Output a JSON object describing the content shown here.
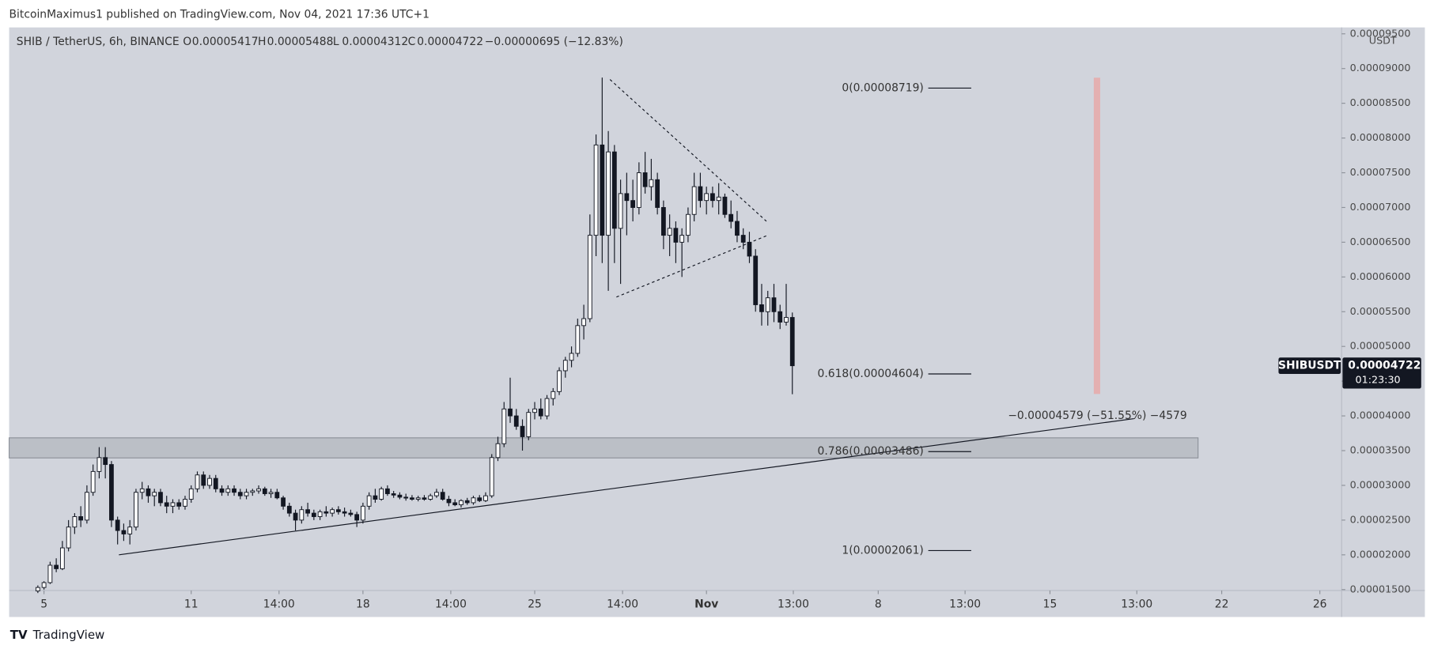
{
  "publisher": "BitcoinMaximus1 published on TradingView.com, Nov 04, 2021 17:36 UTC+1",
  "brand": "TradingView",
  "chart_data": {
    "type": "candlestick",
    "title": "SHIB / TetherUS, 6h, BINANCE",
    "legend_keys": [
      "O",
      "H",
      "L",
      "C"
    ],
    "change": "−0.00000695 (−12.83%)",
    "symbol": "SHIBUSDT",
    "countdown": "01:23:30",
    "currency": "USDT",
    "measure": "−0.00004579 (−51.55%) −4579",
    "fib_levels": [
      {
        "label": "0(0.00008719)",
        "value": 8.719e-05
      },
      {
        "label": "0.618(0.00004604)",
        "value": 4.604e-05
      },
      {
        "label": "0.786(0.00003486)",
        "value": 3.486e-05
      },
      {
        "label": "1(0.00002061)",
        "value": 2.061e-05
      }
    ],
    "xlim": [
      3.58,
      57.85
    ],
    "xticks": [
      5,
      11,
      {
        "value": 14.58,
        "label": "14:00"
      },
      18,
      {
        "value": 21.58,
        "label": "14:00"
      },
      25,
      {
        "value": 28.58,
        "label": "14:00"
      },
      {
        "value": 32,
        "label": "Nov"
      },
      {
        "value": 35.54,
        "label": "13:00"
      },
      {
        "value": 39,
        "label": "8"
      },
      {
        "value": 42.54,
        "label": "13:00"
      },
      {
        "value": 46,
        "label": "15"
      },
      {
        "value": 49.54,
        "label": "13:00"
      },
      {
        "value": 53,
        "label": "22"
      },
      {
        "value": 57,
        "label": "26"
      }
    ],
    "ylim": [
      1.5e-05,
      9.592e-05
    ],
    "yticks": [
      {
        "value": 1.5e-05,
        "label": "0.00001500"
      },
      {
        "value": 2e-05,
        "label": "0.00002000"
      },
      {
        "value": 2.5e-05,
        "label": "0.00002500"
      },
      {
        "value": 3e-05,
        "label": "0.00003000"
      },
      {
        "value": 3.5e-05,
        "label": "0.00003500"
      },
      {
        "value": 4e-05,
        "label": "0.00004000"
      },
      {
        "value": 4.5e-05,
        "label": "0.00004500"
      },
      {
        "value": 5e-05,
        "label": "0.00005000"
      },
      {
        "value": 5.5e-05,
        "label": "0.00005500"
      },
      {
        "value": 6e-05,
        "label": "0.00006000"
      },
      {
        "value": 6.5e-05,
        "label": "0.00006500"
      },
      {
        "value": 7e-05,
        "label": "0.00007000"
      },
      {
        "value": 7.5e-05,
        "label": "0.00007500"
      },
      {
        "value": 8e-05,
        "label": "0.00008000"
      },
      {
        "value": 8.5e-05,
        "label": "0.00008500"
      },
      {
        "value": 9e-05,
        "label": "0.00009000"
      },
      {
        "value": 9.5e-05,
        "label": "0.00009500"
      }
    ],
    "up_color": "#ffffff",
    "down_color": "#131722",
    "x": [
      4.75,
      5,
      5.25,
      5.5,
      5.75,
      6,
      6.25,
      6.5,
      6.75,
      7,
      7.25,
      7.5,
      7.75,
      8,
      8.25,
      8.5,
      8.75,
      9,
      9.25,
      9.5,
      9.75,
      10,
      10.25,
      10.5,
      10.75,
      11,
      11.25,
      11.5,
      11.75,
      12,
      12.25,
      12.5,
      12.75,
      13,
      13.25,
      13.5,
      13.75,
      14,
      14.25,
      14.5,
      14.75,
      15,
      15.25,
      15.5,
      15.75,
      16,
      16.25,
      16.5,
      16.75,
      17,
      17.25,
      17.5,
      17.75,
      18,
      18.25,
      18.5,
      18.75,
      19,
      19.25,
      19.5,
      19.75,
      20,
      20.25,
      20.5,
      20.75,
      21,
      21.25,
      21.5,
      21.75,
      22,
      22.25,
      22.5,
      22.75,
      23,
      23.25,
      23.5,
      23.75,
      24,
      24.25,
      24.5,
      24.75,
      25,
      25.25,
      25.5,
      25.75,
      26,
      26.25,
      26.5,
      26.75,
      27,
      27.25,
      27.5,
      27.75,
      28,
      28.25,
      28.5,
      28.75,
      29,
      29.25,
      29.5,
      29.75,
      30,
      30.25,
      30.5,
      30.75,
      31,
      31.25,
      31.5,
      31.75,
      32,
      32.25,
      32.5,
      32.75,
      33,
      33.25,
      33.5,
      33.75,
      34,
      34.25,
      34.5,
      34.75,
      35,
      35.25,
      35.5
    ],
    "candles": [
      [
        1.48e-05,
        1.56e-05,
        1.45e-05,
        1.53e-05
      ],
      [
        1.53e-05,
        1.62e-05,
        1.5e-05,
        1.6e-05
      ],
      [
        1.6e-05,
        1.9e-05,
        1.58e-05,
        1.85e-05
      ],
      [
        1.85e-05,
        1.95e-05,
        1.75e-05,
        1.8e-05
      ],
      [
        1.8e-05,
        2.2e-05,
        1.78e-05,
        2.1e-05
      ],
      [
        2.1e-05,
        2.5e-05,
        2.05e-05,
        2.4e-05
      ],
      [
        2.4e-05,
        2.6e-05,
        2.3e-05,
        2.55e-05
      ],
      [
        2.55e-05,
        2.7e-05,
        2.4e-05,
        2.5e-05
      ],
      [
        2.5e-05,
        3e-05,
        2.45e-05,
        2.9e-05
      ],
      [
        2.9e-05,
        3.3e-05,
        2.85e-05,
        3.2e-05
      ],
      [
        3.2e-05,
        3.55e-05,
        3.1e-05,
        3.4e-05
      ],
      [
        3.4e-05,
        3.55e-05,
        3.1e-05,
        3.3e-05
      ],
      [
        3.3e-05,
        3.35e-05,
        2.4e-05,
        2.5e-05
      ],
      [
        2.5e-05,
        2.55e-05,
        2.15e-05,
        2.35e-05
      ],
      [
        2.35e-05,
        2.45e-05,
        2.2e-05,
        2.3e-05
      ],
      [
        2.3e-05,
        2.5e-05,
        2.15e-05,
        2.4e-05
      ],
      [
        2.4e-05,
        2.95e-05,
        2.35e-05,
        2.9e-05
      ],
      [
        2.9e-05,
        3.05e-05,
        2.8e-05,
        2.95e-05
      ],
      [
        2.95e-05,
        3e-05,
        2.75e-05,
        2.85e-05
      ],
      [
        2.85e-05,
        2.95e-05,
        2.7e-05,
        2.9e-05
      ],
      [
        2.9e-05,
        2.95e-05,
        2.7e-05,
        2.75e-05
      ],
      [
        2.75e-05,
        2.85e-05,
        2.6e-05,
        2.7e-05
      ],
      [
        2.7e-05,
        2.8e-05,
        2.6e-05,
        2.75e-05
      ],
      [
        2.75e-05,
        2.8e-05,
        2.65e-05,
        2.7e-05
      ],
      [
        2.7e-05,
        2.85e-05,
        2.65e-05,
        2.8e-05
      ],
      [
        2.8e-05,
        3e-05,
        2.75e-05,
        2.95e-05
      ],
      [
        2.95e-05,
        3.2e-05,
        2.9e-05,
        3.15e-05
      ],
      [
        3.15e-05,
        3.2e-05,
        2.95e-05,
        3e-05
      ],
      [
        3e-05,
        3.15e-05,
        2.95e-05,
        3.1e-05
      ],
      [
        3.1e-05,
        3.15e-05,
        2.9e-05,
        2.95e-05
      ],
      [
        2.95e-05,
        3e-05,
        2.85e-05,
        2.9e-05
      ],
      [
        2.9e-05,
        3e-05,
        2.85e-05,
        2.95e-05
      ],
      [
        2.95e-05,
        3e-05,
        2.85e-05,
        2.9e-05
      ],
      [
        2.9e-05,
        2.95e-05,
        2.8e-05,
        2.85e-05
      ],
      [
        2.85e-05,
        2.95e-05,
        2.8e-05,
        2.9e-05
      ],
      [
        2.9e-05,
        2.95e-05,
        2.85e-05,
        2.92e-05
      ],
      [
        2.92e-05,
        3e-05,
        2.88e-05,
        2.95e-05
      ],
      [
        2.95e-05,
        2.98e-05,
        2.85e-05,
        2.88e-05
      ],
      [
        2.88e-05,
        2.95e-05,
        2.82e-05,
        2.9e-05
      ],
      [
        2.9e-05,
        2.95e-05,
        2.8e-05,
        2.82e-05
      ],
      [
        2.82e-05,
        2.85e-05,
        2.65e-05,
        2.7e-05
      ],
      [
        2.7e-05,
        2.75e-05,
        2.55e-05,
        2.6e-05
      ],
      [
        2.6e-05,
        2.65e-05,
        2.35e-05,
        2.5e-05
      ],
      [
        2.5e-05,
        2.7e-05,
        2.45e-05,
        2.65e-05
      ],
      [
        2.65e-05,
        2.75e-05,
        2.55e-05,
        2.6e-05
      ],
      [
        2.6e-05,
        2.65e-05,
        2.5e-05,
        2.55e-05
      ],
      [
        2.55e-05,
        2.65e-05,
        2.5e-05,
        2.62e-05
      ],
      [
        2.62e-05,
        2.7e-05,
        2.55e-05,
        2.6e-05
      ],
      [
        2.6e-05,
        2.68e-05,
        2.55e-05,
        2.65e-05
      ],
      [
        2.65e-05,
        2.7e-05,
        2.58e-05,
        2.62e-05
      ],
      [
        2.62e-05,
        2.68e-05,
        2.55e-05,
        2.6e-05
      ],
      [
        2.6e-05,
        2.65e-05,
        2.55e-05,
        2.58e-05
      ],
      [
        2.58e-05,
        2.62e-05,
        2.4e-05,
        2.5e-05
      ],
      [
        2.5e-05,
        2.75e-05,
        2.45e-05,
        2.7e-05
      ],
      [
        2.7e-05,
        2.9e-05,
        2.65e-05,
        2.85e-05
      ],
      [
        2.85e-05,
        2.95e-05,
        2.75e-05,
        2.8e-05
      ],
      [
        2.8e-05,
        2.98e-05,
        2.78e-05,
        2.95e-05
      ],
      [
        2.95e-05,
        3e-05,
        2.85e-05,
        2.88e-05
      ],
      [
        2.88e-05,
        2.92e-05,
        2.82e-05,
        2.86e-05
      ],
      [
        2.86e-05,
        2.9e-05,
        2.8e-05,
        2.83e-05
      ],
      [
        2.83e-05,
        2.88e-05,
        2.78e-05,
        2.82e-05
      ],
      [
        2.82e-05,
        2.86e-05,
        2.78e-05,
        2.8e-05
      ],
      [
        2.8e-05,
        2.85e-05,
        2.77e-05,
        2.82e-05
      ],
      [
        2.82e-05,
        2.86e-05,
        2.78e-05,
        2.8e-05
      ],
      [
        2.8e-05,
        2.88e-05,
        2.78e-05,
        2.85e-05
      ],
      [
        2.85e-05,
        2.95e-05,
        2.82e-05,
        2.9e-05
      ],
      [
        2.9e-05,
        2.95e-05,
        2.78e-05,
        2.8e-05
      ],
      [
        2.8e-05,
        2.85e-05,
        2.7e-05,
        2.75e-05
      ],
      [
        2.75e-05,
        2.8e-05,
        2.7e-05,
        2.72e-05
      ],
      [
        2.72e-05,
        2.8e-05,
        2.68e-05,
        2.78e-05
      ],
      [
        2.78e-05,
        2.82e-05,
        2.72e-05,
        2.75e-05
      ],
      [
        2.75e-05,
        2.85e-05,
        2.72e-05,
        2.82e-05
      ],
      [
        2.82e-05,
        2.86e-05,
        2.76e-05,
        2.78e-05
      ],
      [
        2.78e-05,
        2.9e-05,
        2.76e-05,
        2.85e-05
      ],
      [
        2.85e-05,
        3.45e-05,
        2.82e-05,
        3.4e-05
      ],
      [
        3.4e-05,
        3.7e-05,
        3.35e-05,
        3.6e-05
      ],
      [
        3.6e-05,
        4.2e-05,
        3.55e-05,
        4.1e-05
      ],
      [
        4.1e-05,
        4.55e-05,
        3.9e-05,
        4e-05
      ],
      [
        4e-05,
        4.1e-05,
        3.8e-05,
        3.85e-05
      ],
      [
        3.85e-05,
        3.95e-05,
        3.5e-05,
        3.7e-05
      ],
      [
        3.7e-05,
        4.1e-05,
        3.65e-05,
        4.05e-05
      ],
      [
        4.05e-05,
        4.2e-05,
        3.95e-05,
        4.1e-05
      ],
      [
        4.1e-05,
        4.25e-05,
        3.95e-05,
        4e-05
      ],
      [
        4e-05,
        4.3e-05,
        3.95e-05,
        4.25e-05
      ],
      [
        4.25e-05,
        4.4e-05,
        4.15e-05,
        4.35e-05
      ],
      [
        4.35e-05,
        4.7e-05,
        4.3e-05,
        4.65e-05
      ],
      [
        4.65e-05,
        4.85e-05,
        4.55e-05,
        4.8e-05
      ],
      [
        4.8e-05,
        5e-05,
        4.7e-05,
        4.9e-05
      ],
      [
        4.9e-05,
        5.4e-05,
        4.85e-05,
        5.3e-05
      ],
      [
        5.3e-05,
        5.6e-05,
        5.1e-05,
        5.4e-05
      ],
      [
        5.4e-05,
        6.9e-05,
        5.35e-05,
        6.6e-05
      ],
      [
        6.6e-05,
        8.05e-05,
        6.3e-05,
        7.9e-05
      ],
      [
        7.9e-05,
        8.87e-05,
        6.2e-05,
        6.6e-05
      ],
      [
        6.6e-05,
        8.1e-05,
        5.8e-05,
        7.8e-05
      ],
      [
        7.8e-05,
        7.9e-05,
        6.2e-05,
        6.7e-05
      ],
      [
        6.7e-05,
        7.4e-05,
        5.9e-05,
        7.2e-05
      ],
      [
        7.2e-05,
        7.5e-05,
        6.6e-05,
        7.1e-05
      ],
      [
        7.1e-05,
        7.4e-05,
        6.8e-05,
        7e-05
      ],
      [
        7e-05,
        7.65e-05,
        6.9e-05,
        7.5e-05
      ],
      [
        7.5e-05,
        7.8e-05,
        7.2e-05,
        7.3e-05
      ],
      [
        7.3e-05,
        7.7e-05,
        7.1e-05,
        7.4e-05
      ],
      [
        7.4e-05,
        7.5e-05,
        6.9e-05,
        7e-05
      ],
      [
        7e-05,
        7.1e-05,
        6.4e-05,
        6.6e-05
      ],
      [
        6.6e-05,
        6.9e-05,
        6.3e-05,
        6.7e-05
      ],
      [
        6.7e-05,
        6.8e-05,
        6.2e-05,
        6.5e-05
      ],
      [
        6.5e-05,
        6.7e-05,
        6e-05,
        6.6e-05
      ],
      [
        6.6e-05,
        7e-05,
        6.5e-05,
        6.9e-05
      ],
      [
        6.9e-05,
        7.5e-05,
        6.8e-05,
        7.3e-05
      ],
      [
        7.3e-05,
        7.5e-05,
        7e-05,
        7.1e-05
      ],
      [
        7.1e-05,
        7.3e-05,
        6.9e-05,
        7.2e-05
      ],
      [
        7.2e-05,
        7.3e-05,
        7e-05,
        7.1e-05
      ],
      [
        7.1e-05,
        7.35e-05,
        6.9e-05,
        7.15e-05
      ],
      [
        7.15e-05,
        7.2e-05,
        6.85e-05,
        6.9e-05
      ],
      [
        6.9e-05,
        7.1e-05,
        6.7e-05,
        6.8e-05
      ],
      [
        6.8e-05,
        6.95e-05,
        6.5e-05,
        6.6e-05
      ],
      [
        6.6e-05,
        6.7e-05,
        6.4e-05,
        6.5e-05
      ],
      [
        6.5e-05,
        6.65e-05,
        6.2e-05,
        6.3e-05
      ],
      [
        6.3e-05,
        6.4e-05,
        5.5e-05,
        5.6e-05
      ],
      [
        5.6e-05,
        5.9e-05,
        5.3e-05,
        5.5e-05
      ],
      [
        5.5e-05,
        5.8e-05,
        5.3e-05,
        5.7e-05
      ],
      [
        5.7e-05,
        5.9e-05,
        5.35e-05,
        5.5e-05
      ],
      [
        5.5e-05,
        5.6e-05,
        5.25e-05,
        5.35e-05
      ],
      [
        5.35e-05,
        5.9e-05,
        5.3e-05,
        5.417e-05
      ],
      [
        5.417e-05,
        5.488e-05,
        4.312e-05,
        4.722e-05
      ]
    ]
  }
}
